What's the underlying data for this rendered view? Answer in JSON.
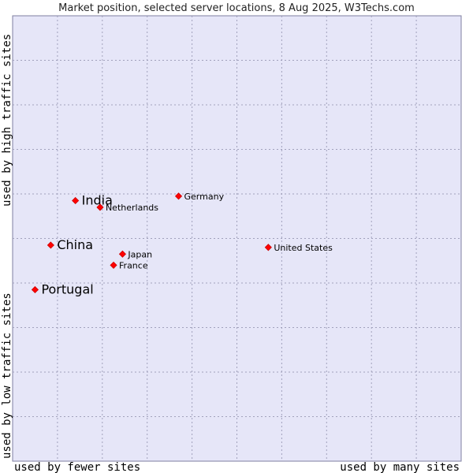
{
  "chart_data": {
    "type": "scatter",
    "title": "Market position, selected server locations, 8 Aug 2025, W3Techs.com",
    "xlabel_left": "used by fewer sites",
    "xlabel_right": "used by many sites",
    "ylabel_top": "used by high traffic sites",
    "ylabel_bottom": "used by low traffic sites",
    "xlim": [
      0,
      100
    ],
    "ylim": [
      0,
      100
    ],
    "grid": true,
    "marker_color": "#ff0000",
    "plot_background": "#e6e6f8",
    "grid_color": "#9a9ab6",
    "points": [
      {
        "name": "India",
        "x": 14,
        "y": 58.5,
        "emphasis": true
      },
      {
        "name": "China",
        "x": 8.5,
        "y": 48.5,
        "emphasis": true
      },
      {
        "name": "Portugal",
        "x": 5,
        "y": 38.5,
        "emphasis": true
      },
      {
        "name": "Netherlands",
        "x": 19.5,
        "y": 57,
        "emphasis": false
      },
      {
        "name": "Germany",
        "x": 37,
        "y": 59.5,
        "emphasis": false
      },
      {
        "name": "Japan",
        "x": 24.5,
        "y": 46.5,
        "emphasis": false
      },
      {
        "name": "France",
        "x": 22.5,
        "y": 44,
        "emphasis": false
      },
      {
        "name": "United States",
        "x": 57,
        "y": 48,
        "emphasis": false
      }
    ]
  }
}
